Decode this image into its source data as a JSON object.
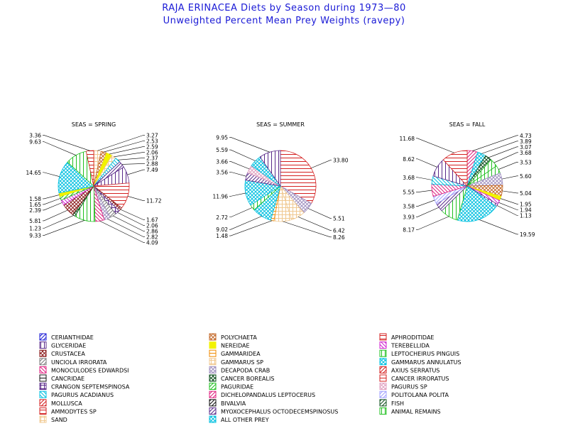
{
  "chart_title": "RAJA ERINACEA Diets by Season during 1973—80",
  "chart_subtitle": "Unweighted Percent Mean Prey Weights (ravepy)",
  "chart_data": [
    {
      "type": "pie",
      "title": "SEAS = SPRING",
      "slices": [
        {
          "category": "SAND",
          "value": 3.27
        },
        {
          "category": "POLYCHAETA",
          "value": 2.53
        },
        {
          "category": "NEREIDAE",
          "value": 2.59
        },
        {
          "category": "GAMMARUS SP",
          "value": 2.06
        },
        {
          "category": "PAGURUS ACADIANUS",
          "value": 2.37
        },
        {
          "category": "MYOXOCEPHALUS OCTODECEMSPINOSUS",
          "value": 2.88
        },
        {
          "category": "GLYCERIDAE",
          "value": 7.49
        },
        {
          "category": "APHRODITIDAE",
          "value": 11.72
        },
        {
          "category": "CRUSTACEA",
          "value": 1.67
        },
        {
          "category": "CRANGON SEPTEMSPINOSA",
          "value": 2.06
        },
        {
          "category": "UNCIOLA IRRORATA",
          "value": 2.86
        },
        {
          "category": "DECAPODA CRAB",
          "value": 2.82
        },
        {
          "category": "MONOCULODES EDWARDSI",
          "value": 4.09
        },
        {
          "category": "LEPTOCHEIRUS PINGUIS",
          "value": 9.33
        },
        {
          "category": "CANCER BOREALIS",
          "value": 1.23
        },
        {
          "category": "CRUSTACEA",
          "value": 5.81
        },
        {
          "category": "TEREBELLIDA",
          "value": 2.39
        },
        {
          "category": "PAGURIDAE",
          "value": 1.65
        },
        {
          "category": "NEREIDAE",
          "value": 1.58
        },
        {
          "category": "GAMMARUS ANNULATUS",
          "value": 14.65
        },
        {
          "category": "ANIMAL REMAINS",
          "value": 9.63
        },
        {
          "category": "CANCER IRRORATUS",
          "value": 3.36
        }
      ]
    },
    {
      "type": "pie",
      "title": "SEAS = SUMMER",
      "slices": [
        {
          "category": "APHRODITIDAE",
          "value": 33.8
        },
        {
          "category": "DECAPODA CRAB",
          "value": 5.51
        },
        {
          "category": "GAMMARUS SP",
          "value": 6.42
        },
        {
          "category": "SAND",
          "value": 8.26
        },
        {
          "category": "GAMMARIDEA",
          "value": 1.48
        },
        {
          "category": "GAMMARUS ANNULATUS",
          "value": 9.02
        },
        {
          "category": "ANIMAL REMAINS",
          "value": 2.72
        },
        {
          "category": "ALL OTHER PREY",
          "value": 11.96
        },
        {
          "category": "MYOXOCEPHALUS OCTODECEMSPINOSUS",
          "value": 3.56
        },
        {
          "category": "PAGURUS SP",
          "value": 3.66
        },
        {
          "category": "ALL OTHER PREY",
          "value": 5.59
        },
        {
          "category": "GLYCERIDAE",
          "value": 9.95
        }
      ]
    },
    {
      "type": "pie",
      "title": "SEAS = FALL",
      "slices": [
        {
          "category": "DICHELOPANDALUS LEPTOCERUS",
          "value": 4.73
        },
        {
          "category": "ALL OTHER PREY",
          "value": 3.89
        },
        {
          "category": "CANCER BOREALIS",
          "value": 3.07
        },
        {
          "category": "LEPTOCHEIRUS PINGUIS",
          "value": 3.68
        },
        {
          "category": "ANIMAL REMAINS",
          "value": 3.53
        },
        {
          "category": "DECAPODA CRAB",
          "value": 5.6
        },
        {
          "category": "POLYCHAETA",
          "value": 5.04
        },
        {
          "category": "NEREIDAE",
          "value": 1.95
        },
        {
          "category": "TEREBELLIDA",
          "value": 1.94
        },
        {
          "category": "GLYCERIDAE",
          "value": 1.13
        },
        {
          "category": "GAMMARUS ANNULATUS",
          "value": 19.59
        },
        {
          "category": "ANIMAL REMAINS",
          "value": 8.17
        },
        {
          "category": "MYOXOCEPHALUS OCTODECEMSPINOSUS",
          "value": 3.93
        },
        {
          "category": "POLITOLANA POLITA",
          "value": 3.58
        },
        {
          "category": "MONOCULODES EDWARDSI",
          "value": 5.55
        },
        {
          "category": "PAGURUS ACADIANUS",
          "value": 3.68
        },
        {
          "category": "GLYCERIDAE",
          "value": 8.62
        },
        {
          "category": "APHRODITIDAE",
          "value": 11.68
        }
      ]
    }
  ],
  "legend": [
    {
      "label": "CERIANTHIDAE",
      "color": "#1a1ad6",
      "pattern": "diag-r"
    },
    {
      "label": "POLYCHAETA",
      "color": "#c46a2a",
      "pattern": "cross-x"
    },
    {
      "label": "APHRODITIDAE",
      "color": "#d42020",
      "pattern": "horiz"
    },
    {
      "label": "GLYCERIDAE",
      "color": "#5a2a8a",
      "pattern": "vert"
    },
    {
      "label": "NEREIDAE",
      "color": "#f2f200",
      "pattern": "solid"
    },
    {
      "label": "TEREBELLIDA",
      "color": "#d020d0",
      "pattern": "diag-l"
    },
    {
      "label": "CRUSTACEA",
      "color": "#8a1a1a",
      "pattern": "cross-x"
    },
    {
      "label": "GAMMARIDEA",
      "color": "#f08a00",
      "pattern": "horiz"
    },
    {
      "label": "LEPTOCHEIRUS PINGUIS",
      "color": "#20c020",
      "pattern": "vert"
    },
    {
      "label": "UNCIOLA IRRORATA",
      "color": "#7a7a7a",
      "pattern": "diag-r"
    },
    {
      "label": "GAMMARUS SP",
      "color": "#f0c890",
      "pattern": "grid"
    },
    {
      "label": "GAMMARUS ANNULATUS",
      "color": "#00c0e0",
      "pattern": "cross-x"
    },
    {
      "label": "MONOCULODES EDWARDSI",
      "color": "#e02080",
      "pattern": "diag-l"
    },
    {
      "label": "DECAPODA CRAB",
      "color": "#a090c0",
      "pattern": "cross-x"
    },
    {
      "label": "AXIUS SERRATUS",
      "color": "#d42020",
      "pattern": "diag-r"
    },
    {
      "label": "CANCRIDAE",
      "color": "#101010",
      "pattern": "horiz"
    },
    {
      "label": "CANCER BOREALIS",
      "color": "#105020",
      "pattern": "cross-x"
    },
    {
      "label": "CANCER IRRORATUS",
      "color": "#d42020",
      "pattern": "horiz"
    },
    {
      "label": "CRANGON SEPTEMSPINOSA",
      "color": "#5a2a8a",
      "pattern": "grid"
    },
    {
      "label": "PAGURIDAE",
      "color": "#20c020",
      "pattern": "diag-r"
    },
    {
      "label": "PAGURUS SP",
      "color": "#e0a0c0",
      "pattern": "cross-x"
    },
    {
      "label": "PAGURUS ACADIANUS",
      "color": "#00c0e0",
      "pattern": "diag-l"
    },
    {
      "label": "DICHELOPANDALUS LEPTOCERUS",
      "color": "#e02080",
      "pattern": "diag-r"
    },
    {
      "label": "POLITOLANA POLITA",
      "color": "#a0a0ff",
      "pattern": "diag-r"
    },
    {
      "label": "MOLLUSCA",
      "color": "#d42020",
      "pattern": "diag-r"
    },
    {
      "label": "BIVALVIA",
      "color": "#101010",
      "pattern": "diag-r"
    },
    {
      "label": "FISH",
      "color": "#105020",
      "pattern": "diag-r"
    },
    {
      "label": "AMMODYTES SP",
      "color": "#d42020",
      "pattern": "horiz"
    },
    {
      "label": "MYOXOCEPHALUS OCTODECEMSPINOSUS",
      "color": "#5a2a8a",
      "pattern": "diag-r"
    },
    {
      "label": "ANIMAL REMAINS",
      "color": "#20c020",
      "pattern": "vert"
    },
    {
      "label": "SAND",
      "color": "#f0c890",
      "pattern": "grid"
    },
    {
      "label": "ALL OTHER PREY",
      "color": "#00c0e0",
      "pattern": "cross-x"
    }
  ]
}
